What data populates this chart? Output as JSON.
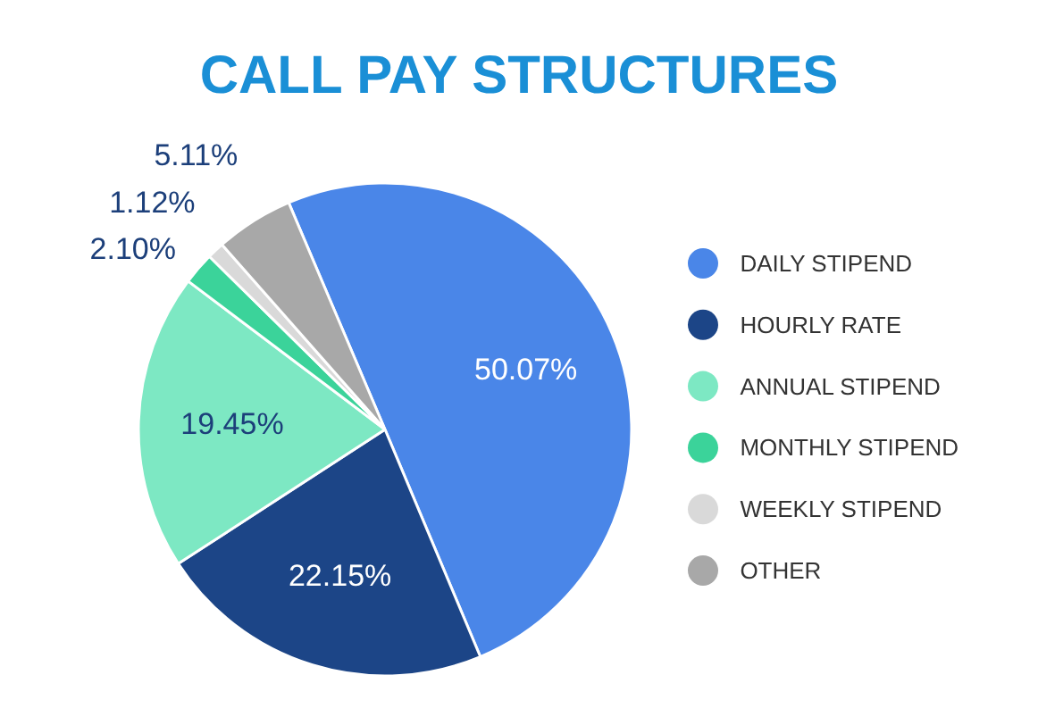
{
  "chart_data": {
    "type": "pie",
    "title": "CALL PAY STRUCTURES",
    "categories": [
      "DAILY STIPEND",
      "HOURLY RATE",
      "ANNUAL STIPEND",
      "MONTHLY STIPEND",
      "WEEKLY STIPEND",
      "OTHER"
    ],
    "values": [
      50.07,
      22.15,
      19.45,
      2.1,
      1.12,
      5.11
    ],
    "value_labels": [
      "50.07%",
      "22.15%",
      "19.45%",
      "2.10%",
      "1.12%",
      "5.11%"
    ],
    "colors": [
      "#4a86e8",
      "#1c4587",
      "#7de8c3",
      "#3bd39a",
      "#d9d9d9",
      "#a8a8a8"
    ],
    "legend": "right"
  }
}
